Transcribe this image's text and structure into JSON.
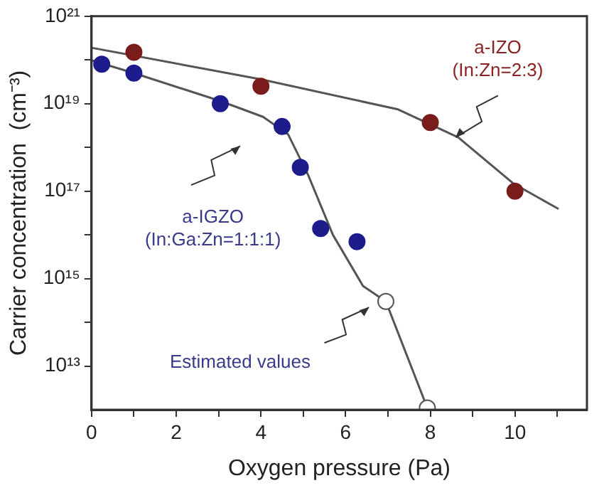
{
  "chart_data": {
    "type": "scatter",
    "xlabel": "Oxygen pressure (Pa)",
    "ylabel": "Carrier concentration  (cm⁻³)",
    "log": "y",
    "grid": false,
    "legend": false,
    "marker": "circle",
    "xlim": [
      0,
      11.7
    ],
    "xticks": [
      0,
      {
        "value": 1,
        "label": null
      },
      2,
      {
        "value": 3,
        "label": null
      },
      4,
      {
        "value": 5,
        "label": null
      },
      6,
      {
        "value": 7,
        "label": null
      },
      8,
      {
        "value": 9,
        "label": null
      },
      10,
      {
        "value": 11,
        "label": null
      }
    ],
    "ylim": [
      1000000000000.0,
      1e+21
    ],
    "yticks": [
      {
        "value": 10000000000000.0,
        "label": "10¹³"
      },
      {
        "value": 100000000000000.0,
        "label": null
      },
      {
        "value": 1000000000000000.0,
        "label": "10¹⁵"
      },
      {
        "value": 1e+16,
        "label": null
      },
      {
        "value": 1e+17,
        "label": "10¹⁷"
      },
      {
        "value": 1e+18,
        "label": null
      },
      {
        "value": 1e+19,
        "label": "10¹⁹"
      },
      {
        "value": 1e+20,
        "label": null
      },
      {
        "value": 1e+21,
        "label": "10²¹"
      }
    ],
    "series": [
      {
        "type": "line",
        "color": "#555555",
        "marker": "none",
        "x": [
          0,
          4,
          7.24,
          8.66,
          9.96,
          11.03
        ],
        "values": [
          1.9e+20,
          3.6e+19,
          7.4e+18,
          1.7e+18,
          1.5e+17,
          3.9e+16
        ]
      },
      {
        "type": "line",
        "color": "#555555",
        "marker": "none",
        "x": [
          0,
          1,
          3.04,
          4.05,
          4.64,
          5.11,
          5.7,
          6.41,
          6.95,
          7.93
        ],
        "values": [
          9.8e+19,
          5e+19,
          1.15e+19,
          5e+18,
          2e+18,
          2.4e+17,
          1e+16,
          680000000000000.0,
          300000000000000.0,
          1100000000000.0
        ]
      },
      {
        "color": "#7a1c1c",
        "x": [
          1,
          4,
          8,
          10
        ],
        "values": [
          1.5e+20,
          2.5e+19,
          3.7e+18,
          1e+17
        ]
      },
      {
        "color": "#1c1c8c",
        "x": [
          0.24,
          1,
          3.04,
          4.5,
          4.93,
          5.41,
          6.27
        ],
        "values": [
          8e+19,
          5e+19,
          1e+19,
          3e+18,
          3.5e+17,
          1.4e+16,
          7000000000000000.0
        ]
      },
      {
        "color": "#ffffff",
        "x": [
          6.95,
          7.93
        ],
        "values": [
          300000000000000.0,
          1100000000000.0
        ]
      }
    ],
    "annotations": [
      {
        "text": "a-IZO\n(In:Zn=2:3)",
        "x": 8.6,
        "y": 1.7e+18
      },
      "a-IGZO\n(In:Ga:Zn=1:1:1)",
      "Estimated values"
    ]
  }
}
